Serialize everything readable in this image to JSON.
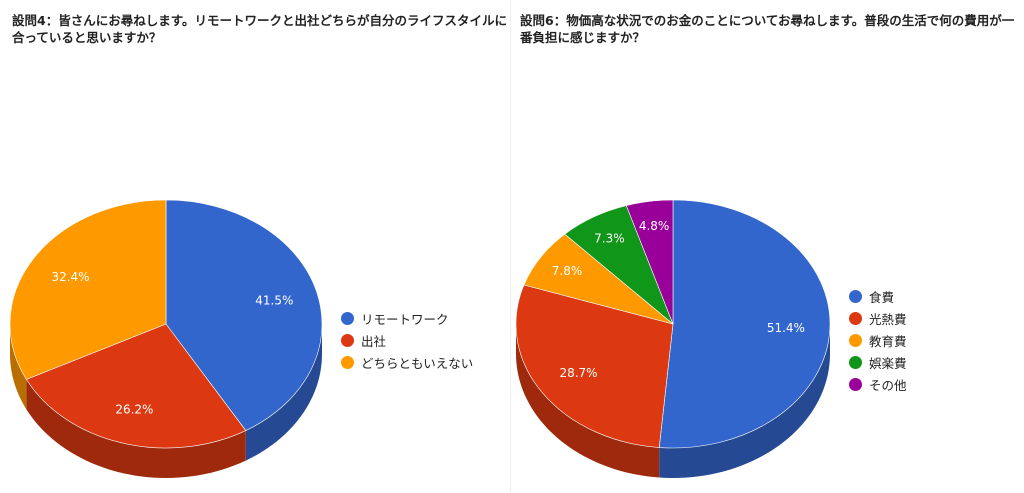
{
  "chart_data": [
    {
      "type": "pie",
      "title": "設問4：皆さんにお尋ねします。リモートワークと出社どちらが自分のライフスタイルに合っていると思いますか？",
      "categories": [
        "リモートワーク",
        "出社",
        "どちらともいえない"
      ],
      "values": [
        41.5,
        26.2,
        32.4
      ],
      "labels": [
        "41.5%",
        "26.2%",
        "32.4%"
      ],
      "colors": [
        "#3366cc",
        "#dc3912",
        "#ff9900"
      ],
      "legend": "right"
    },
    {
      "type": "pie",
      "title": "設問6：物価高な状況でのお金のことについてお尋ねします。普段の生活で何の費用が一番負担に感じますか？",
      "categories": [
        "食費",
        "光熱費",
        "教育費",
        "娯楽費",
        "その他"
      ],
      "values": [
        51.4,
        28.7,
        7.8,
        7.3,
        4.8
      ],
      "labels": [
        "51.4%",
        "28.7%",
        "7.8%",
        "7.3%",
        "4.8%"
      ],
      "colors": [
        "#3366cc",
        "#dc3912",
        "#ff9900",
        "#109618",
        "#990099"
      ],
      "legend": "right"
    }
  ]
}
